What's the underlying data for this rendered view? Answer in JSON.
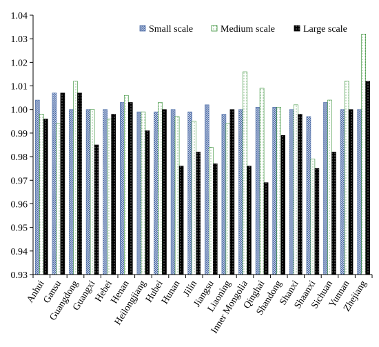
{
  "chart_data": {
    "type": "bar",
    "title": "",
    "xlabel": "",
    "ylabel": "",
    "ylim": [
      0.93,
      1.04
    ],
    "yticks": [
      "0.93",
      "0.94",
      "0.95",
      "0.96",
      "0.97",
      "0.98",
      "0.99",
      "1.00",
      "1.01",
      "1.02",
      "1.03",
      "1.04"
    ],
    "grid": false,
    "legend_position": "top-right",
    "categories": [
      "Anhui",
      "Gansu",
      "Guangdong",
      "Guangxi",
      "Hebei",
      "Henan",
      "Heilongjiang",
      "Hubei",
      "Hunan",
      "Jilin",
      "Jiangsu",
      "Liaoning",
      "Inner Mongolia",
      "Qinghai",
      "Shandong",
      "Shanxi",
      "Shaanxi",
      "Sichuan",
      "Yunnan",
      "Zhejiang"
    ],
    "series": [
      {
        "name": "Small scale",
        "pattern": "crosshatch",
        "color": "#8ea2c8",
        "values": [
          1.004,
          1.007,
          1.0,
          1.0,
          1.0,
          1.003,
          0.999,
          0.999,
          1.0,
          0.999,
          1.002,
          0.998,
          1.0,
          1.001,
          1.001,
          1.0,
          0.997,
          1.003,
          1.0,
          1.0
        ]
      },
      {
        "name": "Medium scale",
        "pattern": "dotted-green",
        "color": "#2e8b2e",
        "values": [
          0.998,
          0.994,
          1.012,
          1.0,
          0.996,
          1.006,
          0.999,
          1.003,
          0.997,
          0.995,
          0.984,
          0.994,
          1.016,
          1.009,
          1.001,
          1.002,
          0.979,
          1.004,
          1.012,
          1.032
        ]
      },
      {
        "name": "Large scale",
        "pattern": "dotted-black",
        "color": "#000000",
        "values": [
          0.996,
          1.007,
          1.007,
          0.985,
          0.998,
          1.003,
          0.991,
          1.0,
          0.976,
          0.982,
          0.977,
          1.0,
          0.976,
          0.969,
          0.989,
          0.998,
          0.975,
          0.982,
          1.0,
          1.012
        ]
      }
    ]
  }
}
